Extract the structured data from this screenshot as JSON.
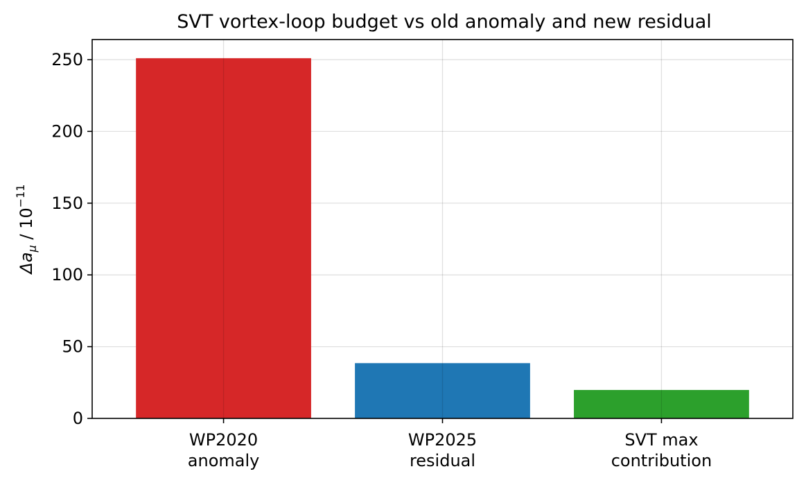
{
  "chart_data": {
    "type": "bar",
    "title": "SVT vortex-loop budget vs old anomaly and new residual",
    "xlabel": "",
    "ylabel_prefix": "Δa",
    "ylabel_sub": "μ",
    "ylabel_base": " / 10",
    "ylabel_exp": "−11",
    "categories": [
      [
        "WP2020",
        "anomaly"
      ],
      [
        "WP2025",
        "residual"
      ],
      [
        "SVT max",
        "contribution"
      ]
    ],
    "values": [
      251,
      38.5,
      19.8
    ],
    "colors": [
      "#d62728",
      "#1f77b4",
      "#2ca02c"
    ],
    "ylim": [
      0,
      264
    ],
    "yticks": [
      0,
      50,
      100,
      150,
      200,
      250
    ],
    "grid": true
  }
}
